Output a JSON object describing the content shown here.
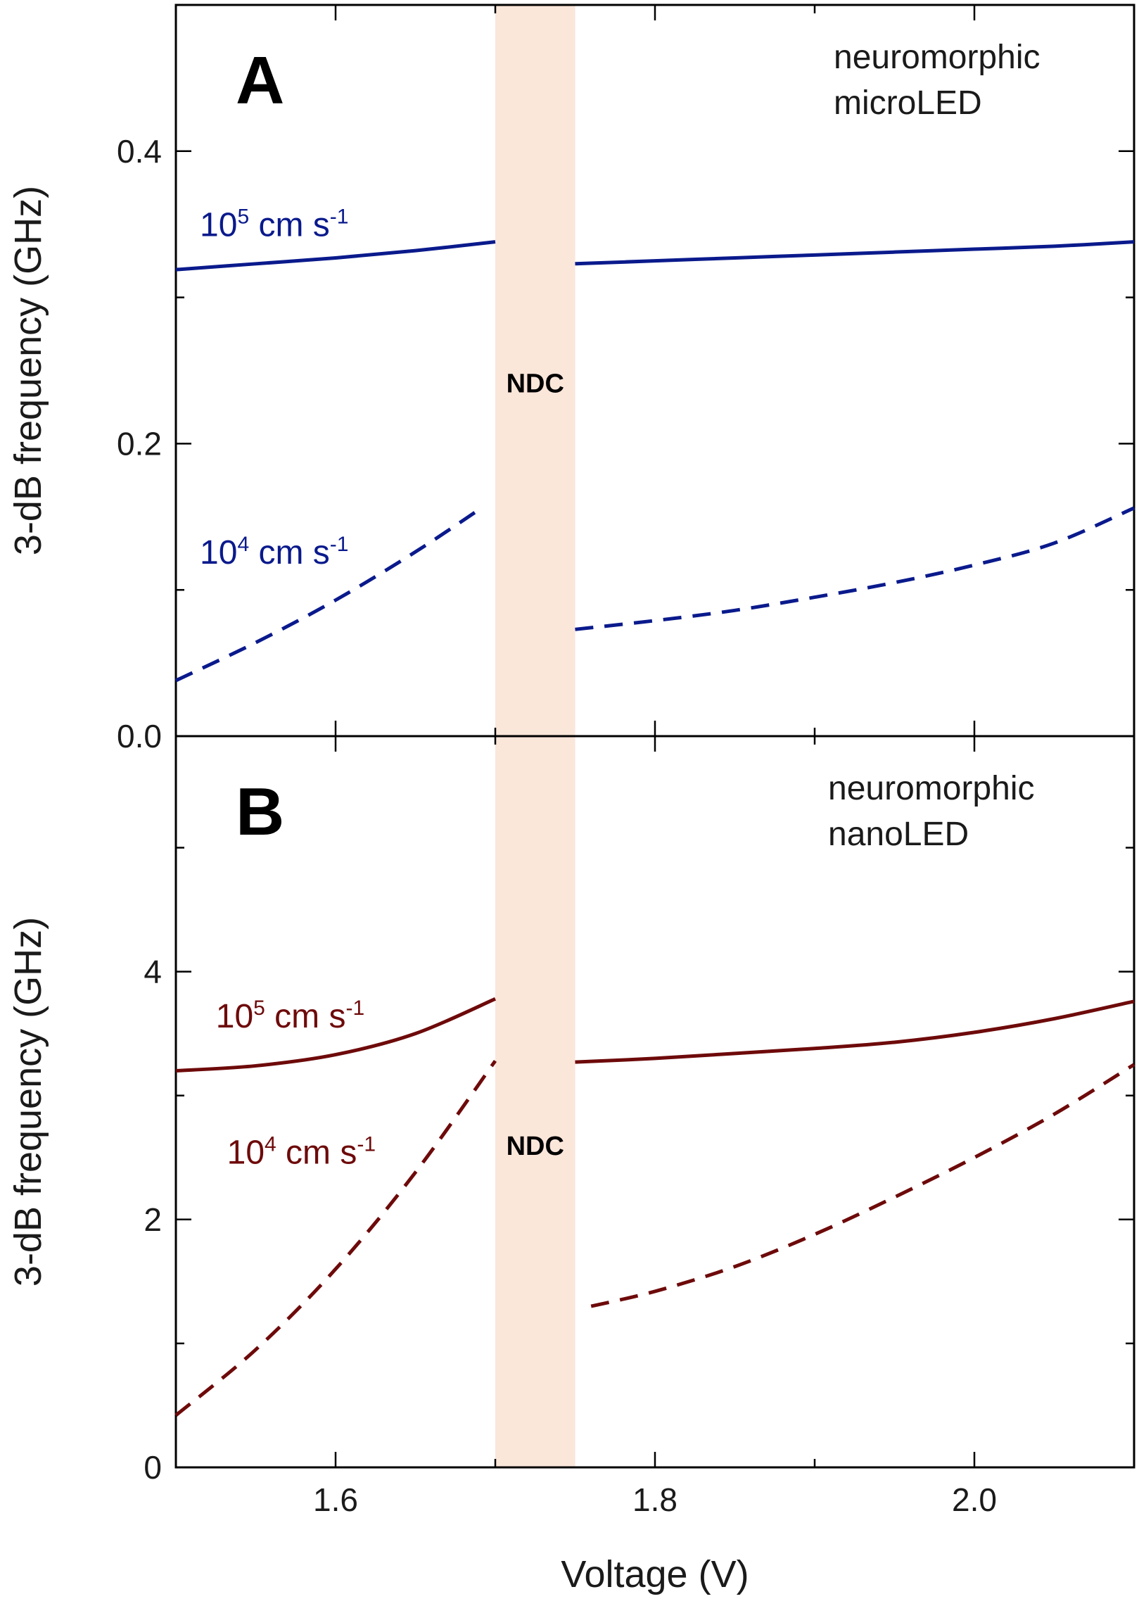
{
  "chart_data": [
    {
      "type": "line",
      "panel": "A",
      "device_label": [
        "neuromorphic",
        "microLED"
      ],
      "xlabel": "Voltage (V)",
      "ylabel": "3-dB frequency (GHz)",
      "xlim": [
        1.5,
        2.1
      ],
      "ylim": [
        0,
        0.5
      ],
      "xticks": [
        1.6,
        1.8,
        2.0
      ],
      "xtick_labels": [
        "1.6",
        "1.8",
        "2.0"
      ],
      "yticks": [
        0,
        0.2,
        0.4
      ],
      "ytick_labels": [
        "0.0",
        "0.2",
        "0.4"
      ],
      "ndc_region": {
        "label": "NDC",
        "x": [
          1.7,
          1.75
        ],
        "label_y": 0.235
      },
      "series": [
        {
          "name": "10^5 cm s^-1",
          "label_base": "10",
          "label_exp": "5",
          "label_unit": "cm s",
          "label_unit_exp": "-1",
          "label_at": [
            1.515,
            0.342
          ],
          "style": "solid",
          "color": "#0a1a8c",
          "segments": [
            {
              "x": [
                1.5,
                1.55,
                1.6,
                1.65,
                1.7
              ],
              "y": [
                0.319,
                0.323,
                0.327,
                0.332,
                0.338
              ]
            },
            {
              "x": [
                1.75,
                1.8,
                1.85,
                1.9,
                1.95,
                2.0,
                2.05,
                2.1
              ],
              "y": [
                0.323,
                0.325,
                0.327,
                0.329,
                0.331,
                0.333,
                0.335,
                0.338
              ]
            }
          ]
        },
        {
          "name": "10^4 cm s^-1",
          "label_base": "10",
          "label_exp": "4",
          "label_unit": "cm s",
          "label_unit_exp": "-1",
          "label_at": [
            1.515,
            0.118
          ],
          "style": "dashed",
          "color": "#0a1a8c",
          "segments": [
            {
              "x": [
                1.5,
                1.55,
                1.6,
                1.65,
                1.69
              ],
              "y": [
                0.038,
                0.064,
                0.093,
                0.126,
                0.155
              ]
            },
            {
              "x": [
                1.75,
                1.8,
                1.85,
                1.9,
                1.95,
                2.0,
                2.05,
                2.1
              ],
              "y": [
                0.073,
                0.079,
                0.086,
                0.095,
                0.105,
                0.117,
                0.132,
                0.156
              ]
            }
          ]
        }
      ]
    },
    {
      "type": "line",
      "panel": "B",
      "device_label": [
        "neuromorphic",
        "nanoLED"
      ],
      "xlabel": "Voltage (V)",
      "ylabel": "3-dB frequency (GHz)",
      "xlim": [
        1.5,
        2.1
      ],
      "ylim": [
        0,
        5.9
      ],
      "xticks": [
        1.6,
        1.8,
        2.0
      ],
      "xtick_labels": [
        "1.6",
        "1.8",
        "2.0"
      ],
      "yticks": [
        0,
        2,
        4
      ],
      "ytick_labels": [
        "0",
        "2",
        "4"
      ],
      "ndc_region": {
        "label": "NDC",
        "x": [
          1.7,
          1.75
        ],
        "label_y": 2.52
      },
      "series": [
        {
          "name": "10^5 cm s^-1",
          "label_base": "10",
          "label_exp": "5",
          "label_unit": "cm s",
          "label_unit_exp": "-1",
          "label_at": [
            1.525,
            3.55
          ],
          "style": "solid",
          "color": "#6e0a0a",
          "segments": [
            {
              "x": [
                1.5,
                1.55,
                1.6,
                1.65,
                1.7
              ],
              "y": [
                3.2,
                3.24,
                3.33,
                3.5,
                3.78
              ]
            },
            {
              "x": [
                1.75,
                1.8,
                1.85,
                1.9,
                1.95,
                2.0,
                2.05,
                2.1
              ],
              "y": [
                3.27,
                3.3,
                3.34,
                3.38,
                3.43,
                3.51,
                3.62,
                3.76
              ]
            }
          ]
        },
        {
          "name": "10^4 cm s^-1",
          "label_base": "10",
          "label_exp": "4",
          "label_unit": "cm s",
          "label_unit_exp": "-1",
          "label_at": [
            1.532,
            2.45
          ],
          "style": "dashed",
          "color": "#6e0a0a",
          "segments": [
            {
              "x": [
                1.5,
                1.55,
                1.6,
                1.65,
                1.7
              ],
              "y": [
                0.42,
                0.95,
                1.6,
                2.38,
                3.28
              ]
            },
            {
              "x": [
                1.76,
                1.8,
                1.85,
                1.9,
                1.95,
                2.0,
                2.05,
                2.1
              ],
              "y": [
                1.3,
                1.42,
                1.62,
                1.88,
                2.18,
                2.5,
                2.85,
                3.25
              ]
            }
          ]
        }
      ]
    }
  ]
}
